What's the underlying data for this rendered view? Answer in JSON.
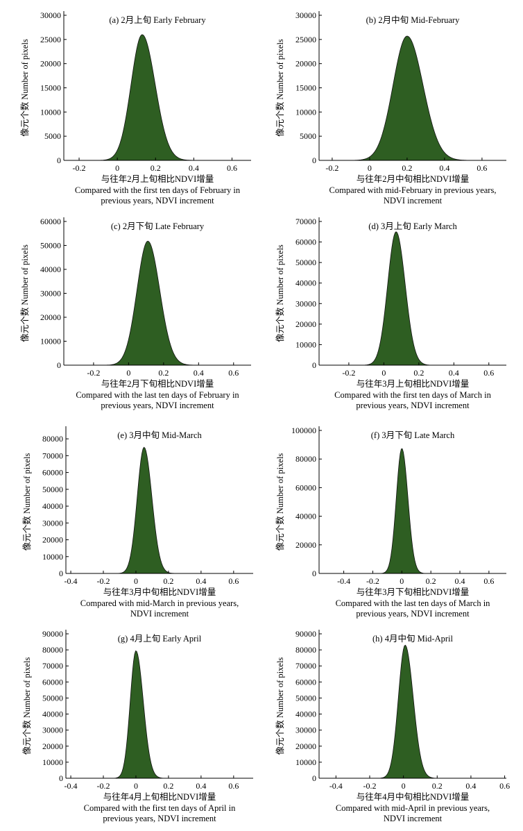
{
  "colors": {
    "fill": "#2e5e22",
    "edge": "#111111",
    "axis": "#000000"
  },
  "ylabel": "像元个数 Number of pixels",
  "chart_data": [
    {
      "type": "area",
      "title": "(a) 2月上旬  Early February",
      "xlabel_cn": "与往年2月上旬相比NDVI增量",
      "xlabel_en": [
        "Compared with the first ten days of February in",
        "previous years, NDVI increment"
      ],
      "xlim": [
        -0.28,
        0.7
      ],
      "ylim": [
        0,
        30000
      ],
      "xticks": [
        -0.2,
        0,
        0.2,
        0.4,
        0.6
      ],
      "yticks": [
        0,
        5000,
        10000,
        15000,
        20000,
        25000,
        30000
      ],
      "peak_x": 0.13,
      "peak_y": 26000,
      "sigma_left": 0.058,
      "sigma_right": 0.068
    },
    {
      "type": "area",
      "title": "(b) 2月中旬 Mid-February",
      "xlabel_cn": "与往年2月中旬相比NDVI增量",
      "xlabel_en": [
        "Compared with mid-February in previous years,",
        "NDVI increment"
      ],
      "xlim": [
        -0.27,
        0.73
      ],
      "ylim": [
        0,
        30000
      ],
      "xticks": [
        -0.2,
        0,
        0.2,
        0.4,
        0.6
      ],
      "yticks": [
        0,
        5000,
        10000,
        15000,
        20000,
        25000,
        30000
      ],
      "peak_x": 0.2,
      "peak_y": 25700,
      "sigma_left": 0.075,
      "sigma_right": 0.085
    },
    {
      "type": "area",
      "title": "(c) 2月下旬  Late February",
      "xlabel_cn": "与往年2月下旬相比NDVI增量",
      "xlabel_en": [
        "Compared with the last ten days of February in",
        "previous years, NDVI increment"
      ],
      "xlim": [
        -0.37,
        0.7
      ],
      "ylim": [
        0,
        60000
      ],
      "xticks": [
        -0.2,
        0,
        0.2,
        0.4,
        0.6
      ],
      "yticks": [
        0,
        10000,
        20000,
        30000,
        40000,
        50000,
        60000
      ],
      "peak_x": 0.11,
      "peak_y": 51800,
      "sigma_left": 0.062,
      "sigma_right": 0.068
    },
    {
      "type": "area",
      "title": "(d) 3月上旬 Early March",
      "xlabel_cn": "与往年3月上旬相比NDVI增量",
      "xlabel_en": [
        "Compared with the first ten days of March in",
        "previous years, NDVI increment"
      ],
      "xlim": [
        -0.37,
        0.7
      ],
      "ylim": [
        0,
        70000
      ],
      "xticks": [
        -0.2,
        0,
        0.2,
        0.4,
        0.6
      ],
      "yticks": [
        0,
        10000,
        20000,
        30000,
        40000,
        50000,
        60000,
        70000
      ],
      "peak_x": 0.07,
      "peak_y": 65000,
      "sigma_left": 0.048,
      "sigma_right": 0.052
    },
    {
      "type": "area",
      "title": "(e) 3月中旬 Mid-March",
      "xlabel_cn": "与往年3月中旬相比NDVI增量",
      "xlabel_en": [
        "Compared with mid-March in previous years,",
        "NDVI increment"
      ],
      "xlim": [
        -0.43,
        0.72
      ],
      "ylim": [
        0,
        85000
      ],
      "xticks": [
        -0.4,
        -0.2,
        0,
        0.2,
        0.4,
        0.6
      ],
      "yticks": [
        0,
        10000,
        20000,
        30000,
        40000,
        50000,
        60000,
        70000,
        80000
      ],
      "peak_x": 0.05,
      "peak_y": 75000,
      "sigma_left": 0.042,
      "sigma_right": 0.048
    },
    {
      "type": "area",
      "title": "(f) 3月下旬 Late March",
      "xlabel_cn": "与往年3月下旬相比NDVI增量",
      "xlabel_en": [
        "Compared with the last ten days of March in",
        "previous years, NDVI increment"
      ],
      "xlim": [
        -0.57,
        0.72
      ],
      "ylim": [
        0,
        100000
      ],
      "xticks": [
        -0.4,
        -0.2,
        0,
        0.2,
        0.4,
        0.6
      ],
      "yticks": [
        0,
        20000,
        40000,
        60000,
        80000,
        100000
      ],
      "peak_x": 0.0,
      "peak_y": 87500,
      "sigma_left": 0.038,
      "sigma_right": 0.042
    },
    {
      "type": "area",
      "title": "(g) 4月上旬 Early April",
      "xlabel_cn": "与往年4月上旬相比NDVI增量",
      "xlabel_en": [
        "Compared with the first ten days of April in",
        "previous years, NDVI increment"
      ],
      "xlim": [
        -0.43,
        0.72
      ],
      "ylim": [
        0,
        90000
      ],
      "xticks": [
        -0.4,
        -0.2,
        0,
        0.2,
        0.4,
        0.6
      ],
      "yticks": [
        0,
        10000,
        20000,
        30000,
        40000,
        50000,
        60000,
        70000,
        80000,
        90000
      ],
      "peak_x": 0.0,
      "peak_y": 79500,
      "sigma_left": 0.035,
      "sigma_right": 0.045
    },
    {
      "type": "area",
      "title": "(h) 4月中旬 Mid-April",
      "xlabel_cn": "与往年4月中旬相比NDVI增量",
      "xlabel_en": [
        "Compared with mid-April in previous years,",
        "NDVI increment"
      ],
      "xlim": [
        -0.5,
        0.61
      ],
      "ylim": [
        0,
        90000
      ],
      "xticks": [
        -0.4,
        -0.2,
        0,
        0.2,
        0.4,
        0.6
      ],
      "yticks": [
        0,
        10000,
        20000,
        30000,
        40000,
        50000,
        60000,
        70000,
        80000,
        90000
      ],
      "peak_x": 0.01,
      "peak_y": 83000,
      "sigma_left": 0.04,
      "sigma_right": 0.048
    }
  ]
}
